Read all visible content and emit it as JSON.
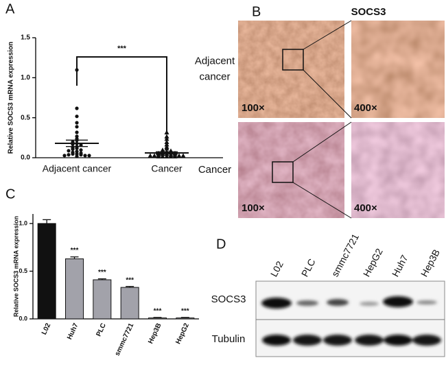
{
  "chart_data": [
    {
      "panel": "A",
      "type": "dotplot",
      "ylabel": "Relative SOCS3 mRNA expression",
      "categories": [
        "Adjacent cancer",
        "Cancer"
      ],
      "markers": [
        "circle",
        "triangle"
      ],
      "groups": [
        {
          "values": [
            1.08,
            0.6,
            0.5,
            0.42,
            0.37,
            0.3,
            0.25,
            0.22,
            0.2,
            0.18,
            0.16,
            0.15,
            0.14,
            0.12,
            0.11,
            0.1,
            0.09,
            0.08,
            0.07,
            0.06,
            0.05,
            0.04,
            0.03,
            0.03,
            0.02,
            0.02,
            0.01,
            0.01,
            0.01,
            0.0
          ],
          "mean": 0.18,
          "sem": 0.04
        },
        {
          "values": [
            0.3,
            0.25,
            0.22,
            0.18,
            0.15,
            0.12,
            0.1,
            0.08,
            0.07,
            0.06,
            0.05,
            0.05,
            0.04,
            0.04,
            0.03,
            0.03,
            0.02,
            0.02,
            0.02,
            0.01,
            0.01,
            0.01,
            0.01,
            0.0,
            0.0,
            0.0,
            0.0,
            0.0
          ],
          "mean": 0.06,
          "sem": 0.015
        }
      ],
      "significance": "***",
      "ylim": [
        0,
        1.5
      ],
      "yticks": [
        {
          "value": 0,
          "label": "0.0"
        },
        {
          "value": 0.5,
          "label": "0.5"
        },
        {
          "value": 1,
          "label": "1.0"
        },
        {
          "value": 1.5,
          "label": "1.5"
        }
      ]
    },
    {
      "panel": "C",
      "type": "bar",
      "ylabel": "Relative SOCS3 mRNA expression",
      "categories": [
        "L02",
        "Huh7",
        "PLC",
        "smmc7721",
        "Hep3B",
        "HepG2"
      ],
      "values": [
        1.0,
        0.63,
        0.41,
        0.33,
        0.01,
        0.01
      ],
      "errors": [
        0.04,
        0.02,
        0.01,
        0.01,
        0.005,
        0.005
      ],
      "significance": [
        null,
        "***",
        "***",
        "***",
        "***",
        "***"
      ],
      "colors": [
        "#111111",
        "#a2a2aa",
        "#a2a2aa",
        "#a2a2aa",
        "#a2a2aa",
        "#a2a2aa"
      ],
      "ylim": [
        0,
        1.1
      ],
      "yticks": [
        {
          "value": 0,
          "label": "0.0"
        },
        {
          "value": 0.5,
          "label": "0.5"
        },
        {
          "value": 1,
          "label": "1.0"
        }
      ]
    }
  ],
  "panel_b": {
    "panel": "B",
    "title": "SOCS3",
    "rows": [
      {
        "label": [
          "Adjacent",
          "cancer"
        ],
        "magnifications": [
          "100×",
          "400×"
        ]
      },
      {
        "label": [
          "Cancer"
        ],
        "magnifications": [
          "100×",
          "400×"
        ]
      }
    ]
  },
  "panel_d": {
    "panel": "D",
    "lanes": [
      "L02",
      "PLC",
      "smmc7721",
      "HepG2",
      "Huh7",
      "Hep3B"
    ],
    "rows": [
      "SOCS3",
      "Tubulin"
    ]
  }
}
